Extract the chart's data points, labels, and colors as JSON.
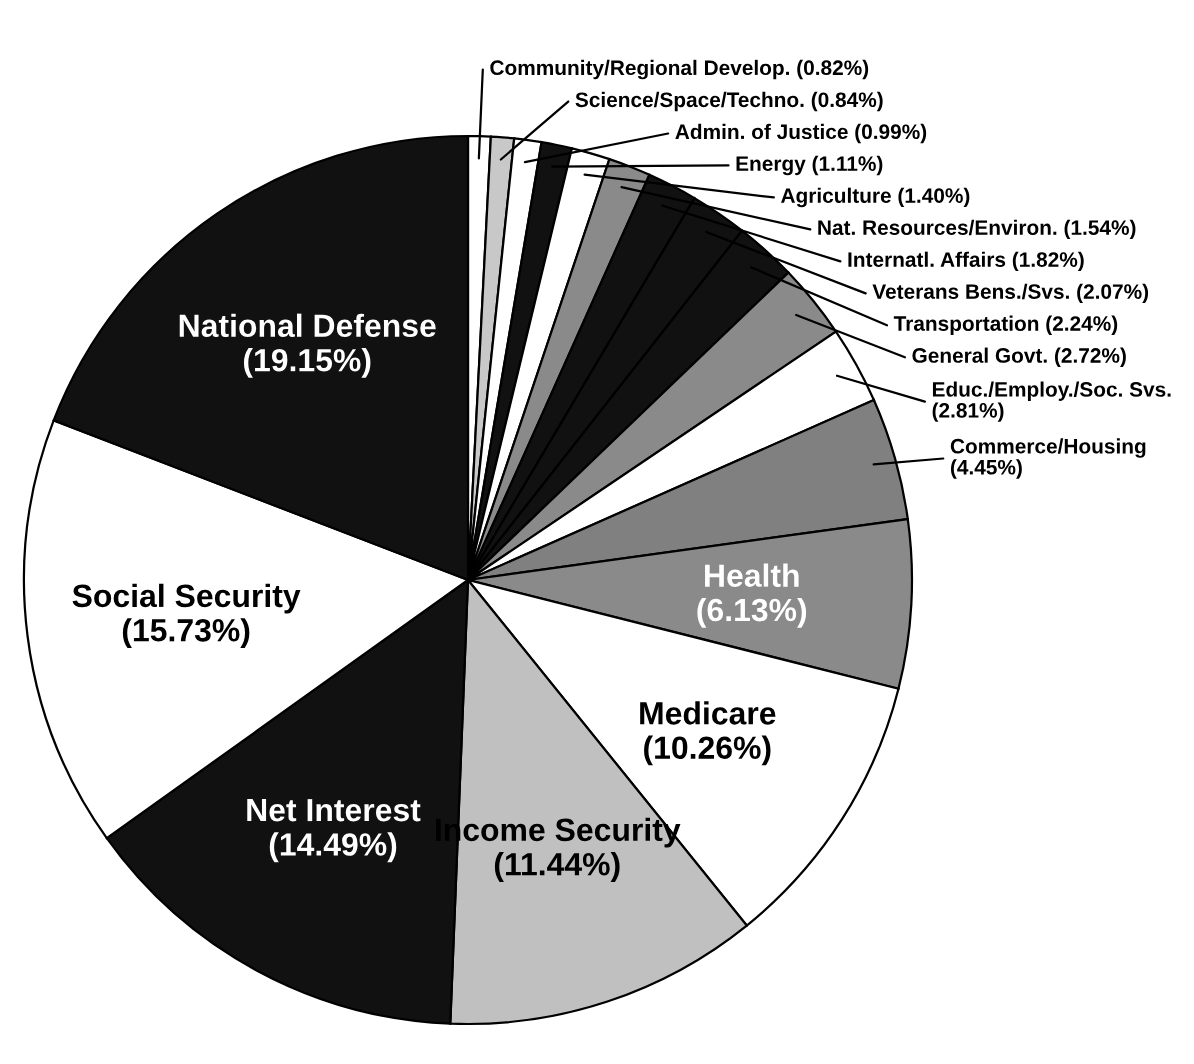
{
  "chart_data": {
    "type": "pie",
    "categories": [
      "Community/Regional Develop.",
      "Science/Space/Techno.",
      "Admin. of Justice",
      "Energy",
      "Agriculture",
      "Nat. Resources/Environ.",
      "Internatl. Affairs",
      "Veterans Bens./Svs.",
      "Transportation",
      "General Govt.",
      "Educ./Employ./Soc. Svs.",
      "Commerce/Housing",
      "Health",
      "Medicare",
      "Income Security",
      "Net Interest",
      "Social Security",
      "National Defense"
    ],
    "values": [
      0.82,
      0.84,
      0.99,
      1.11,
      1.4,
      1.54,
      1.82,
      2.07,
      2.24,
      2.72,
      2.81,
      4.45,
      6.13,
      10.26,
      11.44,
      14.49,
      15.73,
      19.15
    ],
    "value_labels": [
      "(0.82%)",
      "(0.84%)",
      "(0.99%)",
      "(1.11%)",
      "(1.40%)",
      "(1.54%)",
      "(1.82%)",
      "(2.07%)",
      "(2.24%)",
      "(2.72%)",
      "(2.81%)",
      "(4.45%)",
      "(6.13%)",
      "(10.26%)",
      "(11.44%)",
      "(14.49%)",
      "(15.73%)",
      "(19.15%)"
    ],
    "colors": [
      "#ffffff",
      "#c8c8c8",
      "#ffffff",
      "#111111",
      "#ffffff",
      "#8a8a8a",
      "#111111",
      "#111111",
      "#111111",
      "#8a8a8a",
      "#ffffff",
      "#808080",
      "#8a8a8a",
      "#ffffff",
      "#c0c0c0",
      "#111111",
      "#ffffff",
      "#111111"
    ]
  }
}
